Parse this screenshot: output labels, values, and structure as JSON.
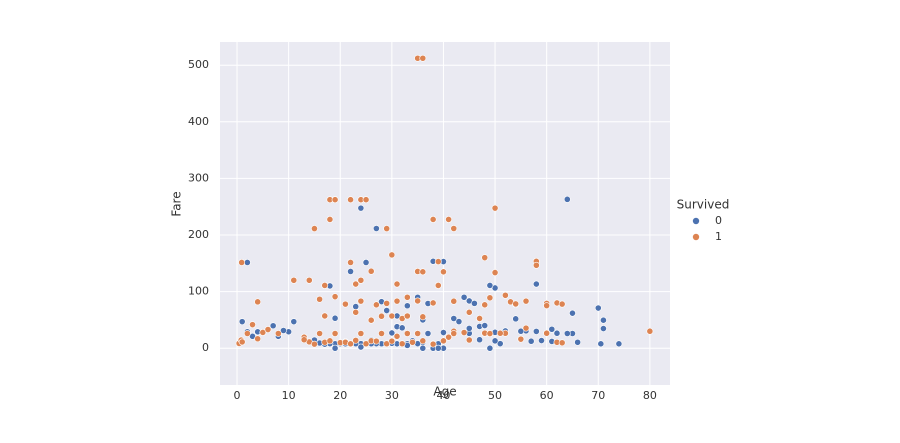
{
  "chart_data": {
    "type": "scatter",
    "xlabel": "Age",
    "ylabel": "Fare",
    "legend_title": "Survived",
    "legend": "right",
    "grid": true,
    "xlim": [
      -3.3,
      83.9
    ],
    "ylim": [
      -65,
      541
    ],
    "xticks": [
      0,
      10,
      20,
      30,
      40,
      50,
      60,
      70,
      80
    ],
    "yticks": [
      0,
      100,
      200,
      300,
      400,
      500
    ],
    "series": [
      {
        "name": "0",
        "color": "#4c72b0",
        "x": [
          2,
          19,
          24,
          27,
          25,
          22,
          64,
          38,
          45,
          46,
          47,
          50,
          49,
          54,
          58,
          65,
          70,
          71,
          71,
          74,
          70.5,
          66,
          65,
          64,
          62,
          61,
          60,
          59,
          58,
          57,
          56,
          55,
          54,
          52,
          51,
          50,
          48,
          47,
          45,
          44,
          42,
          40,
          39,
          38,
          37,
          36,
          35,
          34,
          33,
          32,
          31,
          30,
          29,
          28,
          27,
          26,
          25,
          24,
          23,
          22,
          21,
          20,
          19,
          18,
          17,
          16,
          15,
          14,
          11,
          10,
          9,
          8,
          7,
          4,
          2,
          1,
          3,
          28,
          31,
          33,
          36,
          40,
          47,
          55,
          61,
          19,
          40,
          49,
          36,
          38,
          39,
          24,
          33,
          45,
          50,
          30,
          26,
          21,
          23,
          29,
          31,
          32,
          35,
          37,
          43,
          48,
          19,
          18
        ],
        "values": [
          151.5,
          263,
          247.5,
          211.5,
          151.5,
          135.6,
          263,
          153.5,
          83.5,
          79.2,
          52,
          106.4,
          110.9,
          77.3,
          113.3,
          61.9,
          71,
          49.5,
          34.7,
          7.8,
          7.75,
          10.5,
          26,
          26,
          26.5,
          33.5,
          26.5,
          13.5,
          29.7,
          12.35,
          30.7,
          16,
          51.9,
          30.5,
          8.05,
          13,
          25.9,
          15,
          26.25,
          90,
          52.5,
          27.7,
          7.9,
          7.9,
          26,
          10.5,
          8.05,
          13,
          7.9,
          8.05,
          7.75,
          8.66,
          7.9,
          7.9,
          8.05,
          7.9,
          7.05,
          8.05,
          7.9,
          7.25,
          7.8,
          8.05,
          7.9,
          8,
          7.1,
          9.2,
          14.5,
          11.2,
          46.9,
          29.1,
          31.3,
          21,
          39.7,
          29,
          29.1,
          46.9,
          21.1,
          82.2,
          57,
          75,
          50,
          153,
          38.5,
          30,
          12,
          0,
          0,
          0,
          0,
          0,
          0,
          2,
          5,
          35,
          28,
          27,
          14.5,
          11.5,
          73.5,
          66.6,
          38,
          36,
          90,
          79,
          47,
          40,
          53,
          110
        ]
      },
      {
        "name": "1",
        "color": "#dd8452",
        "x": [
          35,
          36,
          18,
          19,
          22,
          24,
          25,
          18,
          29,
          15,
          38,
          41,
          42,
          50,
          48,
          22,
          0.9,
          58,
          58,
          39,
          40,
          50,
          35,
          36,
          30,
          26,
          24,
          11,
          14,
          39,
          31,
          23,
          49,
          48,
          52,
          53,
          56,
          60,
          62,
          63,
          60,
          54,
          4,
          17,
          16,
          19,
          21,
          24,
          27,
          29,
          31,
          33,
          35,
          38,
          42,
          45,
          47,
          17,
          23,
          26,
          28,
          30,
          32,
          33,
          36,
          42,
          44,
          48,
          52,
          55,
          56,
          62,
          63,
          60,
          80,
          0.4,
          0.8,
          1,
          2,
          3,
          4,
          5,
          6,
          8,
          13,
          14,
          15,
          16,
          17,
          18,
          19,
          20,
          21,
          22,
          23,
          24,
          25,
          26,
          27,
          28,
          29,
          30,
          31,
          32,
          33,
          34,
          35,
          36,
          38,
          40,
          41,
          42,
          45,
          49,
          51,
          13
        ],
        "values": [
          512.3,
          512.3,
          262.4,
          262.4,
          262.4,
          262.4,
          262.4,
          227.5,
          211.3,
          211.3,
          227.5,
          227.5,
          211.5,
          247.5,
          160,
          151.5,
          151.5,
          153.5,
          146.5,
          153,
          135,
          133.6,
          135.6,
          135,
          164.9,
          136,
          120,
          120,
          120,
          110.9,
          113.3,
          113.3,
          89.1,
          76.7,
          93.5,
          81.9,
          83.2,
          79.2,
          80,
          77.96,
          75.25,
          78.3,
          81.9,
          110.9,
          86.5,
          91.1,
          77.9,
          83.2,
          76.7,
          79.2,
          83.2,
          90,
          83.5,
          80,
          83,
          63.4,
          52.6,
          57,
          63.4,
          49.5,
          56.5,
          56.9,
          52.5,
          56.9,
          55.4,
          30,
          27.7,
          26.6,
          26.5,
          16,
          35.5,
          10.5,
          9.6,
          26.5,
          30,
          8.5,
          14.4,
          11.1,
          26,
          41.6,
          16.7,
          27.9,
          33,
          26,
          19.5,
          11.2,
          7.2,
          26,
          10.5,
          13,
          26,
          9.8,
          10.5,
          7.75,
          13.8,
          26,
          7.9,
          13,
          12.5,
          26,
          7.9,
          12.5,
          21,
          7.9,
          26,
          10.5,
          26,
          13,
          7.2,
          13,
          19.5,
          26,
          14.5,
          25.9,
          26.5,
          15
        ]
      }
    ]
  }
}
